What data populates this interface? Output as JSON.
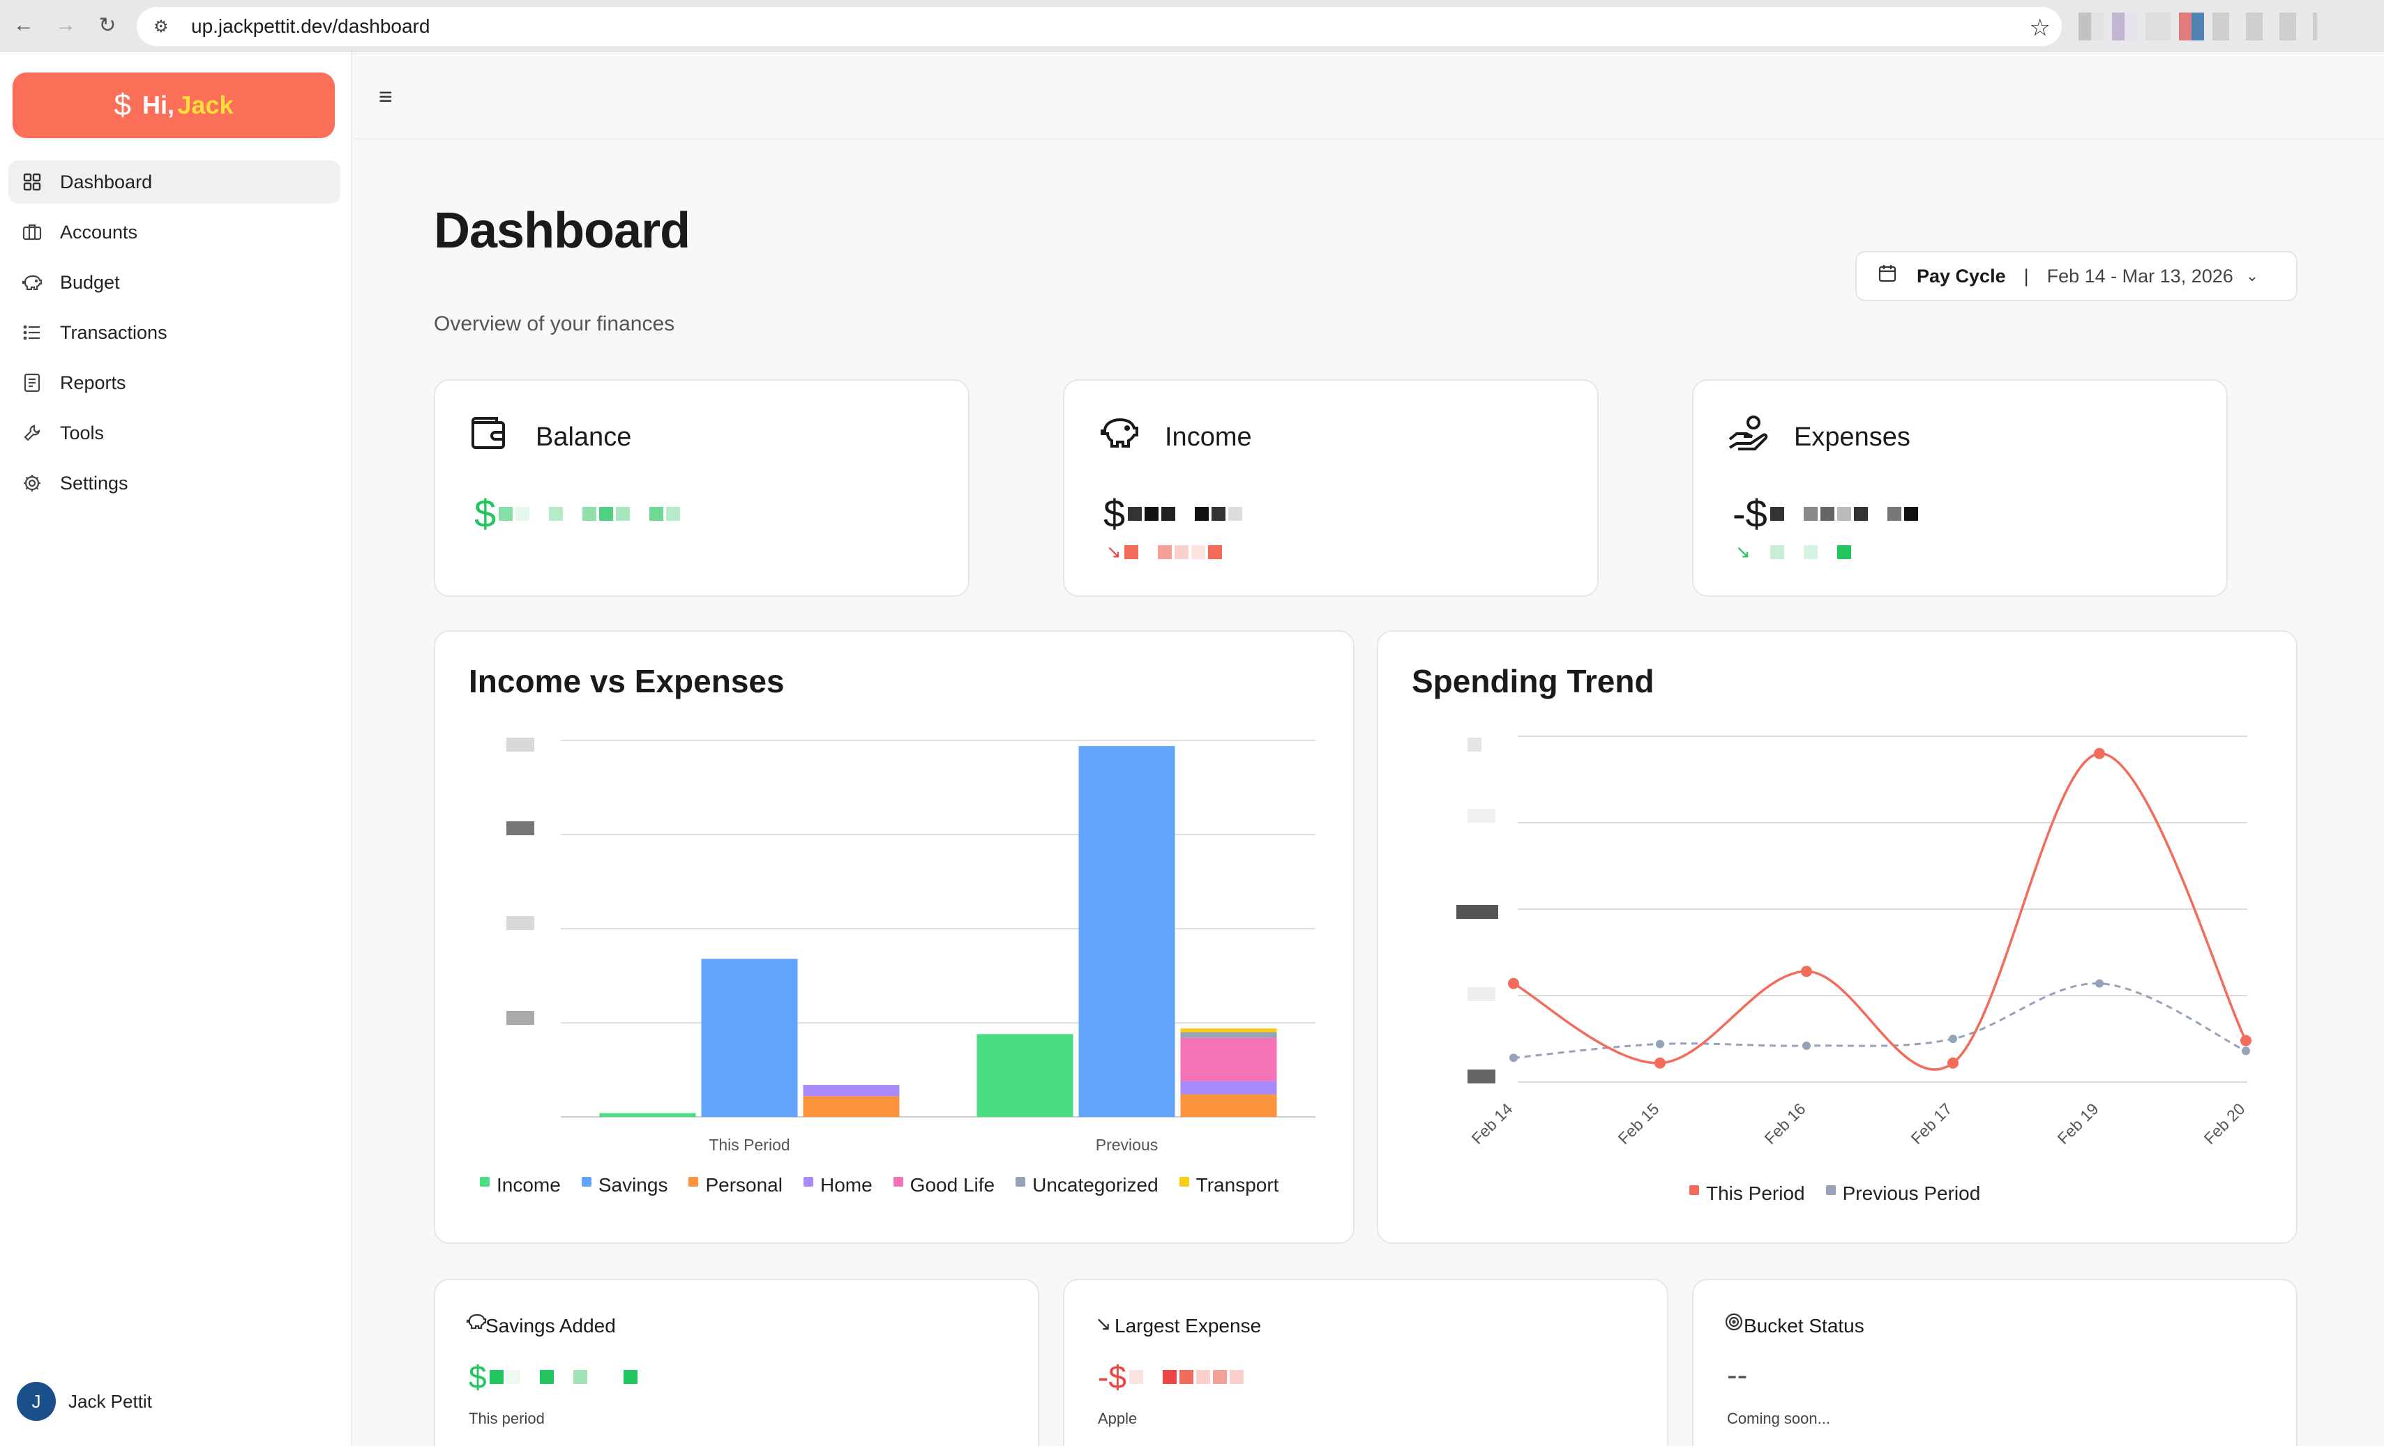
{
  "browser": {
    "url": "up.jackpettit.dev/dashboard"
  },
  "sidebar": {
    "brand": {
      "greeting": "Hi,",
      "name": "Jack"
    },
    "items": [
      {
        "label": "Dashboard",
        "icon": "grid-icon"
      },
      {
        "label": "Accounts",
        "icon": "briefcase-icon"
      },
      {
        "label": "Budget",
        "icon": "piggy-bank-icon"
      },
      {
        "label": "Transactions",
        "icon": "list-icon"
      },
      {
        "label": "Reports",
        "icon": "report-icon"
      },
      {
        "label": "Tools",
        "icon": "wrench-icon"
      },
      {
        "label": "Settings",
        "icon": "gear-icon"
      }
    ],
    "user": {
      "initial": "J",
      "name": "Jack Pettit"
    }
  },
  "header": {
    "title": "Dashboard",
    "subtitle": "Overview of your finances",
    "cycle_label": "Pay Cycle",
    "cycle_range": "Feb 14 - Mar 13, 2026"
  },
  "stats": {
    "balance": {
      "title": "Balance",
      "prefix": "$"
    },
    "income": {
      "title": "Income",
      "prefix": "$"
    },
    "expenses": {
      "title": "Expenses",
      "prefix": "-$"
    }
  },
  "small_cards": {
    "savings": {
      "title": "Savings Added",
      "prefix": "$",
      "sub": "This period"
    },
    "largest": {
      "title": "Largest Expense",
      "prefix": "-$",
      "sub": "Apple"
    },
    "bucket": {
      "title": "Bucket Status",
      "value": "--",
      "sub": "Coming soon..."
    }
  },
  "colors": {
    "accent": "#fb6e58",
    "income": "#4ade80",
    "savings": "#60a5fa",
    "personal": "#fb923c",
    "home": "#a78bfa",
    "good_life": "#f472b6",
    "uncategorized": "#94a3b8",
    "transport": "#facc15"
  },
  "chart_data": [
    {
      "type": "bar",
      "title": "Income vs Expenses",
      "categories": [
        "This Period",
        "Previous"
      ],
      "series": [
        {
          "name": "Income",
          "values": [
            2,
            44
          ]
        },
        {
          "name": "Savings",
          "values": [
            84,
            197
          ]
        },
        {
          "name": "Personal",
          "values": [
            11,
            12
          ]
        },
        {
          "name": "Home",
          "values": [
            6,
            7
          ]
        },
        {
          "name": "Good Life",
          "values": [
            0,
            23
          ]
        },
        {
          "name": "Uncategorized",
          "values": [
            0,
            3
          ]
        },
        {
          "name": "Transport",
          "values": [
            0,
            2
          ]
        }
      ],
      "stacked_series": [
        "Personal",
        "Home",
        "Good Life",
        "Uncategorized",
        "Transport"
      ],
      "ylim": [
        0,
        200
      ],
      "gridlines": 4,
      "grid": true,
      "legend": "bottom"
    },
    {
      "type": "line",
      "title": "Spending Trend",
      "x": [
        "Feb 14",
        "Feb 15",
        "Feb 16",
        "Feb 17",
        "Feb 19",
        "Feb 20"
      ],
      "series": [
        {
          "name": "This Period",
          "values": [
            57,
            11,
            64,
            11,
            190,
            24
          ]
        },
        {
          "name": "Previous Period",
          "values": [
            14,
            22,
            21,
            25,
            57,
            18
          ]
        }
      ],
      "ylim": [
        0,
        200
      ],
      "grid": true,
      "legend": "bottom"
    }
  ]
}
